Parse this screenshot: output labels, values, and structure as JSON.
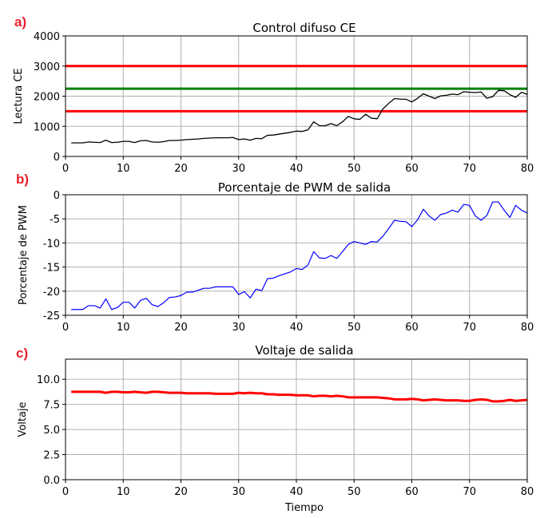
{
  "chart_data": [
    {
      "panel": "a)",
      "type": "line",
      "title": "Control difuso CE",
      "xlabel": "",
      "ylabel": "Lectura CE",
      "xlim": [
        0,
        80
      ],
      "ylim": [
        0,
        4000
      ],
      "xticks": [
        "0",
        "10",
        "20",
        "30",
        "40",
        "50",
        "60",
        "70",
        "80"
      ],
      "yticks": [
        "0",
        "1000",
        "2000",
        "3000",
        "4000"
      ],
      "grid": true,
      "hlines": [
        {
          "y": 3000,
          "color": "#ff0000"
        },
        {
          "y": 2250,
          "color": "#008000"
        },
        {
          "y": 1500,
          "color": "#ff0000"
        }
      ],
      "series": [
        {
          "color": "#000000",
          "x": [
            1,
            2,
            3,
            4,
            5,
            6,
            7,
            8,
            9,
            10,
            11,
            12,
            13,
            14,
            15,
            16,
            17,
            18,
            19,
            20,
            21,
            22,
            23,
            24,
            25,
            26,
            27,
            28,
            29,
            30,
            31,
            32,
            33,
            34,
            35,
            36,
            37,
            38,
            39,
            40,
            41,
            42,
            43,
            44,
            45,
            46,
            47,
            48,
            49,
            50,
            51,
            52,
            53,
            54,
            55,
            56,
            57,
            58,
            59,
            60,
            61,
            62,
            63,
            64,
            65,
            66,
            67,
            68,
            69,
            70,
            71,
            72,
            73,
            74,
            75,
            76,
            77,
            78,
            79,
            80
          ],
          "y": [
            450,
            450,
            450,
            480,
            470,
            460,
            540,
            460,
            470,
            500,
            500,
            460,
            520,
            530,
            480,
            470,
            490,
            530,
            530,
            540,
            560,
            570,
            580,
            600,
            610,
            620,
            620,
            620,
            630,
            560,
            580,
            540,
            600,
            590,
            700,
            710,
            740,
            770,
            800,
            840,
            830,
            880,
            1150,
            1020,
            1020,
            1090,
            1020,
            1150,
            1330,
            1250,
            1230,
            1400,
            1270,
            1250,
            1580,
            1760,
            1920,
            1900,
            1900,
            1810,
            1930,
            2080,
            2000,
            1920,
            2010,
            2030,
            2070,
            2050,
            2150,
            2130,
            2120,
            2140,
            1930,
            1980,
            2190,
            2180,
            2050,
            1960,
            2130,
            2060
          ]
        }
      ]
    },
    {
      "panel": "b)",
      "type": "line",
      "title": "Porcentaje de PWM de salida",
      "xlabel": "",
      "ylabel": "Porcentaje de PWM",
      "xlim": [
        0,
        80
      ],
      "ylim": [
        -25,
        0
      ],
      "xticks": [
        "0",
        "10",
        "20",
        "30",
        "40",
        "50",
        "60",
        "70",
        "80"
      ],
      "yticks": [
        "0",
        "-5",
        "-10",
        "-15",
        "-20",
        "-25"
      ],
      "grid": true,
      "series": [
        {
          "color": "#0000ff",
          "x": [
            1,
            2,
            3,
            4,
            5,
            6,
            7,
            8,
            9,
            10,
            11,
            12,
            13,
            14,
            15,
            16,
            17,
            18,
            19,
            20,
            21,
            22,
            23,
            24,
            25,
            26,
            27,
            28,
            29,
            30,
            31,
            32,
            33,
            34,
            35,
            36,
            37,
            38,
            39,
            40,
            41,
            42,
            43,
            44,
            45,
            46,
            47,
            48,
            49,
            50,
            51,
            52,
            53,
            54,
            55,
            56,
            57,
            58,
            59,
            60,
            61,
            62,
            63,
            64,
            65,
            66,
            67,
            68,
            69,
            70,
            71,
            72,
            73,
            74,
            75,
            76,
            77,
            78,
            79,
            80
          ],
          "y": [
            -23.8,
            -23.8,
            -23.8,
            -23.0,
            -23.0,
            -23.5,
            -21.6,
            -23.8,
            -23.4,
            -22.3,
            -22.3,
            -23.5,
            -21.9,
            -21.5,
            -22.8,
            -23.2,
            -22.4,
            -21.3,
            -21.2,
            -20.9,
            -20.2,
            -20.2,
            -19.8,
            -19.4,
            -19.4,
            -19.1,
            -19.1,
            -19.1,
            -19.1,
            -20.7,
            -20.1,
            -21.4,
            -19.6,
            -19.9,
            -17.4,
            -17.3,
            -16.8,
            -16.4,
            -16.0,
            -15.3,
            -15.5,
            -14.6,
            -11.8,
            -13.1,
            -13.2,
            -12.6,
            -13.2,
            -11.8,
            -10.3,
            -9.7,
            -10.0,
            -10.3,
            -9.7,
            -9.8,
            -8.6,
            -7.0,
            -5.3,
            -5.5,
            -5.6,
            -6.6,
            -5.2,
            -3.0,
            -4.4,
            -5.3,
            -4.1,
            -3.8,
            -3.2,
            -3.6,
            -2.0,
            -2.2,
            -4.4,
            -5.3,
            -4.3,
            -1.5,
            -1.5,
            -3.2,
            -4.7,
            -2.2,
            -3.2,
            -3.8
          ]
        }
      ]
    },
    {
      "panel": "c)",
      "type": "line",
      "title": "Voltaje de salida",
      "xlabel": "Tiempo",
      "ylabel": "Voltaje",
      "xlim": [
        0,
        80
      ],
      "ylim": [
        0,
        12
      ],
      "xticks": [
        "0",
        "10",
        "20",
        "30",
        "40",
        "50",
        "60",
        "70",
        "80"
      ],
      "yticks": [
        "0.0",
        "2.5",
        "5.0",
        "7.5",
        "10.0"
      ],
      "grid": true,
      "series": [
        {
          "color": "#ff0000",
          "x": [
            1,
            2,
            3,
            4,
            5,
            6,
            7,
            8,
            9,
            10,
            11,
            12,
            13,
            14,
            15,
            16,
            17,
            18,
            19,
            20,
            21,
            22,
            23,
            24,
            25,
            26,
            27,
            28,
            29,
            30,
            31,
            32,
            33,
            34,
            35,
            36,
            37,
            38,
            39,
            40,
            41,
            42,
            43,
            44,
            45,
            46,
            47,
            48,
            49,
            50,
            51,
            52,
            53,
            54,
            55,
            56,
            57,
            58,
            59,
            60,
            61,
            62,
            63,
            64,
            65,
            66,
            67,
            68,
            69,
            70,
            71,
            72,
            73,
            74,
            75,
            76,
            77,
            78,
            79,
            80
          ],
          "y": [
            8.75,
            8.75,
            8.75,
            8.75,
            8.75,
            8.75,
            8.65,
            8.75,
            8.75,
            8.7,
            8.7,
            8.75,
            8.7,
            8.65,
            8.75,
            8.75,
            8.7,
            8.65,
            8.65,
            8.65,
            8.6,
            8.6,
            8.6,
            8.6,
            8.6,
            8.55,
            8.55,
            8.55,
            8.55,
            8.65,
            8.6,
            8.65,
            8.6,
            8.6,
            8.5,
            8.5,
            8.45,
            8.45,
            8.45,
            8.4,
            8.4,
            8.4,
            8.3,
            8.35,
            8.35,
            8.3,
            8.35,
            8.3,
            8.2,
            8.2,
            8.2,
            8.2,
            8.2,
            8.2,
            8.15,
            8.1,
            8.0,
            8.0,
            8.0,
            8.05,
            8.0,
            7.9,
            7.95,
            8.0,
            7.95,
            7.9,
            7.9,
            7.9,
            7.85,
            7.85,
            7.95,
            8.0,
            7.95,
            7.8,
            7.8,
            7.85,
            7.95,
            7.85,
            7.9,
            7.95
          ]
        }
      ]
    }
  ]
}
